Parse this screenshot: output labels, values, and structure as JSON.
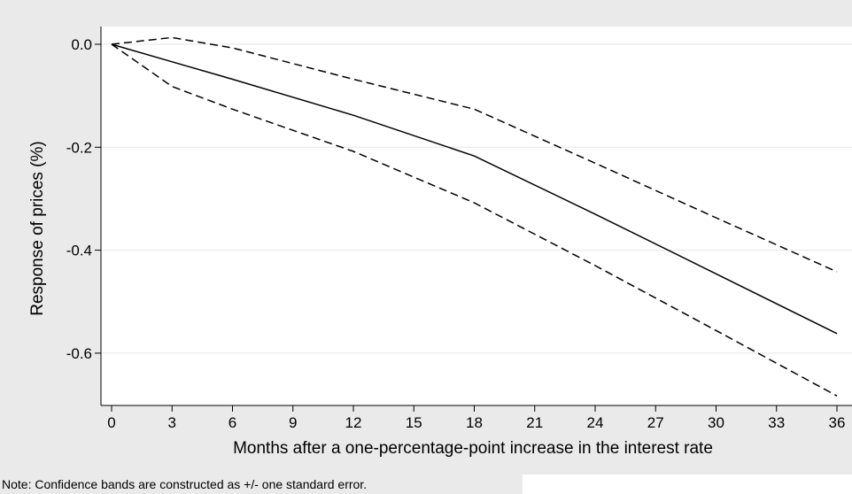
{
  "chart_data": {
    "type": "line",
    "title": "",
    "xlabel": "Months after a one-percentage-point increase in the interest rate",
    "ylabel": "Response of prices (%)",
    "xlim": [
      0,
      36
    ],
    "ylim": [
      -0.7,
      0.02
    ],
    "x_ticks": [
      0,
      3,
      6,
      9,
      12,
      15,
      18,
      21,
      24,
      27,
      30,
      33,
      36
    ],
    "y_ticks": [
      0.0,
      -0.2,
      -0.4,
      -0.6
    ],
    "y_tick_labels": [
      "0.0",
      "-0.2",
      "-0.4",
      "-0.6"
    ],
    "grid": "horizontal",
    "legend": "none",
    "series": [
      {
        "style": "solid",
        "color": "#000000",
        "x": [
          0,
          3,
          6,
          12,
          18,
          24,
          30,
          36
        ],
        "y": [
          0.0,
          -0.034,
          -0.068,
          -0.138,
          -0.217,
          -0.33,
          -0.446,
          -0.562
        ]
      },
      {
        "style": "dashed",
        "color": "#000000",
        "x": [
          0,
          3,
          6,
          12,
          18,
          24,
          30,
          36
        ],
        "y": [
          0.0,
          0.013,
          -0.007,
          -0.068,
          -0.126,
          -0.231,
          -0.337,
          -0.442
        ]
      },
      {
        "style": "dashed",
        "color": "#000000",
        "x": [
          0,
          3,
          6,
          12,
          18,
          24,
          30,
          36
        ],
        "y": [
          0.0,
          -0.082,
          -0.126,
          -0.208,
          -0.308,
          -0.43,
          -0.556,
          -0.683
        ]
      }
    ]
  },
  "note": "Note: Confidence bands are constructed as +/- one standard error.",
  "colors": {
    "figure_background": "#eaeaea",
    "plot_background": "#ffffff",
    "gridline": "#e6e6e6",
    "line": "#000000"
  }
}
